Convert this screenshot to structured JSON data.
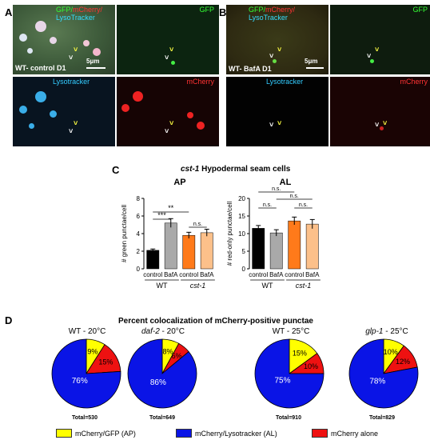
{
  "panel_a": {
    "letter": "A",
    "merge_label_gfp": "GFP/",
    "merge_label_mcherry": "mCherry/",
    "merge_label_lyso": "LysoTracker",
    "condition_label": "WT- control D1",
    "scale_label": "5μm",
    "gfp_label": "GFP",
    "lyso_label": "Lysotracker",
    "mcherry_label": "mCherry"
  },
  "panel_b": {
    "letter": "B",
    "merge_label_gfp": "GFP/",
    "merge_label_mcherry": "mCherry/",
    "merge_label_lyso": "LysoTracker",
    "condition_label": "WT- BafA D1",
    "scale_label": "5μm",
    "gfp_label": "GFP",
    "lyso_label": "Lysotracker",
    "mcherry_label": "mCherry"
  },
  "panel_c": {
    "letter": "C",
    "title_gene": "cst-1",
    "title_rest": " Hypodermal seam cells"
  },
  "panel_d": {
    "letter": "D",
    "title": "Percent colocalization of mCherry-positive punctae"
  },
  "colors": {
    "yellow": "#ffff00",
    "blue": "#0a14e6",
    "red": "#ee1111",
    "bar_black": "#000000",
    "bar_grey": "#a9a9a9",
    "bar_orange": "#ff7a1a",
    "bar_peach": "#fcc08a"
  },
  "chart_data": [
    {
      "type": "bar",
      "title": "AP",
      "ylabel": "# green punctae/cell",
      "ylim": [
        0,
        8
      ],
      "yticks": [
        "0",
        "2",
        "4",
        "6",
        "8"
      ],
      "categories": [
        "control",
        "BafA",
        "control",
        "BafA"
      ],
      "groups": [
        "WT",
        "cst-1"
      ],
      "values": [
        2.1,
        5.2,
        3.8,
        4.1
      ],
      "errors": [
        0.15,
        0.5,
        0.35,
        0.4
      ],
      "significance": [
        {
          "label": "**",
          "from": 0,
          "to": 2
        },
        {
          "label": "***",
          "from": 0,
          "to": 1
        },
        {
          "label": "n.s.",
          "from": 2,
          "to": 3
        }
      ]
    },
    {
      "type": "bar",
      "title": "AL",
      "ylabel": "# red-only punctae/cell",
      "ylim": [
        0,
        20
      ],
      "yticks": [
        "0",
        "5",
        "10",
        "15",
        "20"
      ],
      "categories": [
        "control",
        "BafA",
        "control",
        "BafA"
      ],
      "groups": [
        "WT",
        "cst-1"
      ],
      "values": [
        11.5,
        10.2,
        13.6,
        12.7
      ],
      "errors": [
        0.8,
        0.9,
        1.1,
        1.3
      ],
      "significance": [
        {
          "label": "n.s.",
          "from": 0,
          "to": 2
        },
        {
          "label": "n.s.",
          "from": 1,
          "to": 3
        },
        {
          "label": "n.s.",
          "from": 0,
          "to": 1
        },
        {
          "label": "n.s.",
          "from": 2,
          "to": 3
        }
      ]
    },
    {
      "type": "pie",
      "title_strain": "WT",
      "title_temp": " - 20°C",
      "total_label": "Total=530",
      "slices": [
        {
          "label": "9%",
          "value": 9,
          "color": "#ffff00"
        },
        {
          "label": "15%",
          "value": 15,
          "color": "#ee1111"
        },
        {
          "label": "76%",
          "value": 76,
          "color": "#0a14e6"
        }
      ]
    },
    {
      "type": "pie",
      "title_strain": "daf-2",
      "title_temp": " - 20°C",
      "total_label": "Total=649",
      "slices": [
        {
          "label": "8%",
          "value": 8,
          "color": "#ffff00"
        },
        {
          "label": "6%",
          "value": 6,
          "color": "#ee1111"
        },
        {
          "label": "86%",
          "value": 86,
          "color": "#0a14e6"
        }
      ]
    },
    {
      "type": "pie",
      "title_strain": "WT",
      "title_temp": " - 25°C",
      "total_label": "Total=910",
      "slices": [
        {
          "label": "15%",
          "value": 15,
          "color": "#ffff00"
        },
        {
          "label": "10%",
          "value": 10,
          "color": "#ee1111"
        },
        {
          "label": "75%",
          "value": 75,
          "color": "#0a14e6"
        }
      ]
    },
    {
      "type": "pie",
      "title_strain": "glp-1",
      "title_temp": " - 25°C",
      "total_label": "Total=829",
      "slices": [
        {
          "label": "10%",
          "value": 10,
          "color": "#ffff00"
        },
        {
          "label": "12%",
          "value": 12,
          "color": "#ee1111"
        },
        {
          "label": "78%",
          "value": 78,
          "color": "#0a14e6"
        }
      ]
    }
  ],
  "legend": [
    {
      "label": "mCherry/GFP (AP)",
      "color": "#ffff00"
    },
    {
      "label": "mCherry/Lysotracker (AL)",
      "color": "#0a14e6"
    },
    {
      "label": "mCherry alone",
      "color": "#ee1111"
    }
  ]
}
